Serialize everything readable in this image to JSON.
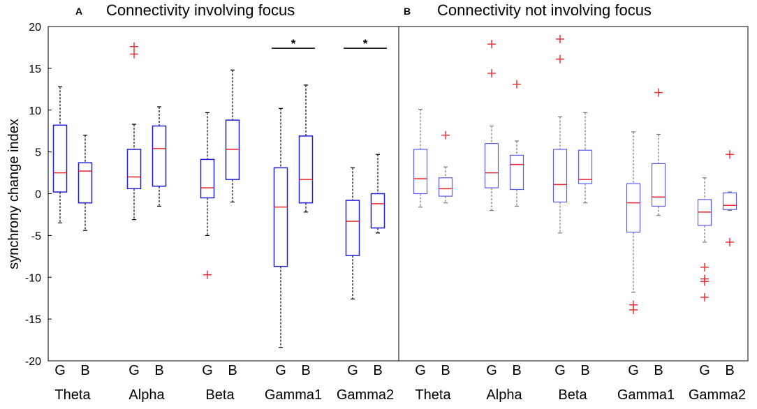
{
  "chart_data": [
    {
      "type": "box",
      "panel": "A",
      "title": "Connectivity involving focus",
      "ylabel": "synchrony change index",
      "ylim": [
        -20,
        20
      ],
      "yticks": [
        20,
        15,
        10,
        5,
        0,
        -5,
        -10,
        -15,
        -20
      ],
      "group_labels": [
        "G",
        "B"
      ],
      "colors": {
        "box": "#1f1fd6",
        "median": "#e8262b",
        "whisker": "#000000",
        "outlier": "#e8262b"
      },
      "bands": [
        {
          "name": "Theta",
          "boxes": [
            {
              "group": "G",
              "q1": 0.2,
              "median": 2.5,
              "q3": 8.2,
              "low": -3.5,
              "high": 12.8,
              "outliers": []
            },
            {
              "group": "B",
              "q1": -1.1,
              "median": 2.7,
              "q3": 3.7,
              "low": -4.4,
              "high": 7.0,
              "outliers": []
            }
          ]
        },
        {
          "name": "Alpha",
          "boxes": [
            {
              "group": "G",
              "q1": 0.6,
              "median": 2.0,
              "q3": 5.3,
              "low": -3.1,
              "high": 8.3,
              "outliers": [
                17.6,
                16.7
              ]
            },
            {
              "group": "B",
              "q1": 0.9,
              "median": 5.4,
              "q3": 8.1,
              "low": -1.5,
              "high": 10.4,
              "outliers": []
            }
          ]
        },
        {
          "name": "Beta",
          "boxes": [
            {
              "group": "G",
              "q1": -0.5,
              "median": 0.7,
              "q3": 4.1,
              "low": -5.0,
              "high": 9.7,
              "outliers": [
                -9.7
              ]
            },
            {
              "group": "B",
              "q1": 1.7,
              "median": 5.3,
              "q3": 8.8,
              "low": -1.0,
              "high": 14.8,
              "outliers": []
            }
          ]
        },
        {
          "name": "Gamma1",
          "boxes": [
            {
              "group": "G",
              "q1": -8.7,
              "median": -1.6,
              "q3": 3.1,
              "low": -18.4,
              "high": 10.2,
              "outliers": []
            },
            {
              "group": "B",
              "q1": -1.1,
              "median": 1.7,
              "q3": 6.9,
              "low": -2.2,
              "high": 13.0,
              "outliers": []
            }
          ]
        },
        {
          "name": "Gamma2",
          "boxes": [
            {
              "group": "G",
              "q1": -7.4,
              "median": -3.3,
              "q3": -0.8,
              "low": -12.6,
              "high": 3.1,
              "outliers": []
            },
            {
              "group": "B",
              "q1": -4.1,
              "median": -1.2,
              "q3": 0.0,
              "low": -4.7,
              "high": 4.7,
              "outliers": []
            }
          ]
        }
      ],
      "significance": [
        {
          "band": "Gamma1",
          "label": "*",
          "y": 17.4
        },
        {
          "band": "Gamma2",
          "label": "*",
          "y": 17.4
        }
      ]
    },
    {
      "type": "box",
      "panel": "B",
      "title": "Connectivity not involving focus",
      "ylim": [
        -20,
        20
      ],
      "group_labels": [
        "G",
        "B"
      ],
      "colors": {
        "box": "#5b5bf0",
        "median": "#e8262b",
        "whisker": "#7a7a7a",
        "outlier": "#e8262b"
      },
      "bands": [
        {
          "name": "Theta",
          "boxes": [
            {
              "group": "G",
              "q1": 0.0,
              "median": 1.8,
              "q3": 5.3,
              "low": -1.6,
              "high": 10.1,
              "outliers": []
            },
            {
              "group": "B",
              "q1": -0.3,
              "median": 0.6,
              "q3": 1.9,
              "low": -1.1,
              "high": 3.2,
              "outliers": [
                7.0
              ]
            }
          ]
        },
        {
          "name": "Alpha",
          "boxes": [
            {
              "group": "G",
              "q1": 0.7,
              "median": 2.5,
              "q3": 6.0,
              "low": -2.0,
              "high": 8.1,
              "outliers": [
                17.9,
                14.4
              ]
            },
            {
              "group": "B",
              "q1": 0.5,
              "median": 3.5,
              "q3": 4.6,
              "low": -1.5,
              "high": 6.3,
              "outliers": [
                13.1
              ]
            }
          ]
        },
        {
          "name": "Beta",
          "boxes": [
            {
              "group": "G",
              "q1": -1.0,
              "median": 1.1,
              "q3": 5.3,
              "low": -4.7,
              "high": 9.2,
              "outliers": [
                18.5,
                16.1
              ]
            },
            {
              "group": "B",
              "q1": 1.2,
              "median": 1.7,
              "q3": 5.2,
              "low": -1.1,
              "high": 9.7,
              "outliers": []
            }
          ]
        },
        {
          "name": "Gamma1",
          "boxes": [
            {
              "group": "G",
              "q1": -4.6,
              "median": -1.1,
              "q3": 1.2,
              "low": -11.8,
              "high": 7.4,
              "outliers": [
                -13.3,
                -13.9
              ]
            },
            {
              "group": "B",
              "q1": -1.5,
              "median": -0.4,
              "q3": 3.6,
              "low": -2.6,
              "high": 7.1,
              "outliers": [
                12.1
              ]
            }
          ]
        },
        {
          "name": "Gamma2",
          "boxes": [
            {
              "group": "G",
              "q1": -3.8,
              "median": -2.2,
              "q3": -0.7,
              "low": -5.8,
              "high": 1.9,
              "outliers": [
                -8.8,
                -10.2,
                -10.5,
                -12.4
              ]
            },
            {
              "group": "B",
              "q1": -1.9,
              "median": -1.4,
              "q3": 0.1,
              "low": -2.0,
              "high": 0.2,
              "outliers": [
                4.7,
                -5.8
              ]
            }
          ]
        }
      ],
      "significance": []
    }
  ]
}
